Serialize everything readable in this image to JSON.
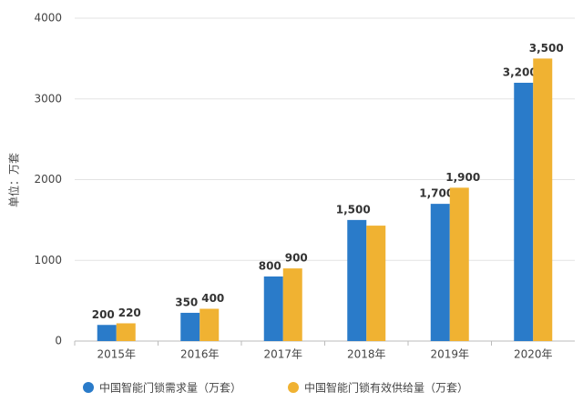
{
  "chart_data": {
    "type": "bar",
    "y_label": "单位：万套",
    "categories": [
      "2015年",
      "2016年",
      "2017年",
      "2018年",
      "2019年",
      "2020年"
    ],
    "series": [
      {
        "name": "中国智能门锁需求量（万套）",
        "color": "#2a7bc9",
        "values": [
          200,
          350,
          800,
          1500,
          1700,
          3200
        ],
        "value_labels": [
          "200",
          "350",
          "800",
          "1,500",
          "1,700",
          "3,200"
        ]
      },
      {
        "name": "中国智能门锁有效供给量（万套）",
        "color": "#f0b232",
        "values": [
          220,
          400,
          900,
          1430,
          1900,
          3500
        ],
        "value_labels": [
          "220",
          "400",
          "900",
          null,
          "1,900",
          "3,500"
        ]
      }
    ],
    "ylim": [
      0,
      4000
    ],
    "yticks": [
      0,
      1000,
      2000,
      3000,
      4000
    ],
    "grid": true,
    "legend": "bottom"
  }
}
